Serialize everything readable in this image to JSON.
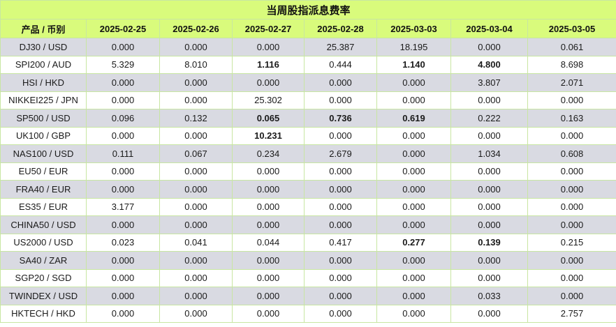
{
  "title": "当周股指派息费率",
  "columns": [
    "产品 / 币别",
    "2025-02-25",
    "2025-02-26",
    "2025-02-27",
    "2025-02-28",
    "2025-03-03",
    "2025-03-04",
    "2025-03-05"
  ],
  "rows": [
    {
      "product": "DJ30 / USD",
      "values": [
        "0.000",
        "0.000",
        "0.000",
        "25.387",
        "18.195",
        "0.000",
        "0.061"
      ],
      "bold": [
        false,
        false,
        false,
        false,
        false,
        false,
        false
      ]
    },
    {
      "product": "SPI200 / AUD",
      "values": [
        "5.329",
        "8.010",
        "1.116",
        "0.444",
        "1.140",
        "4.800",
        "8.698"
      ],
      "bold": [
        false,
        false,
        true,
        false,
        true,
        true,
        false
      ]
    },
    {
      "product": "HSI / HKD",
      "values": [
        "0.000",
        "0.000",
        "0.000",
        "0.000",
        "0.000",
        "3.807",
        "2.071"
      ],
      "bold": [
        false,
        false,
        false,
        false,
        false,
        false,
        false
      ]
    },
    {
      "product": "NIKKEI225 / JPN",
      "values": [
        "0.000",
        "0.000",
        "25.302",
        "0.000",
        "0.000",
        "0.000",
        "0.000"
      ],
      "bold": [
        false,
        false,
        false,
        false,
        false,
        false,
        false
      ]
    },
    {
      "product": "SP500 / USD",
      "values": [
        "0.096",
        "0.132",
        "0.065",
        "0.736",
        "0.619",
        "0.222",
        "0.163"
      ],
      "bold": [
        false,
        false,
        true,
        true,
        true,
        false,
        false
      ]
    },
    {
      "product": "UK100 / GBP",
      "values": [
        "0.000",
        "0.000",
        "10.231",
        "0.000",
        "0.000",
        "0.000",
        "0.000"
      ],
      "bold": [
        false,
        false,
        true,
        false,
        false,
        false,
        false
      ]
    },
    {
      "product": "NAS100 / USD",
      "values": [
        "0.111",
        "0.067",
        "0.234",
        "2.679",
        "0.000",
        "1.034",
        "0.608"
      ],
      "bold": [
        false,
        false,
        false,
        false,
        false,
        false,
        false
      ]
    },
    {
      "product": "EU50 / EUR",
      "values": [
        "0.000",
        "0.000",
        "0.000",
        "0.000",
        "0.000",
        "0.000",
        "0.000"
      ],
      "bold": [
        false,
        false,
        false,
        false,
        false,
        false,
        false
      ]
    },
    {
      "product": "FRA40 / EUR",
      "values": [
        "0.000",
        "0.000",
        "0.000",
        "0.000",
        "0.000",
        "0.000",
        "0.000"
      ],
      "bold": [
        false,
        false,
        false,
        false,
        false,
        false,
        false
      ]
    },
    {
      "product": "ES35 / EUR",
      "values": [
        "3.177",
        "0.000",
        "0.000",
        "0.000",
        "0.000",
        "0.000",
        "0.000"
      ],
      "bold": [
        false,
        false,
        false,
        false,
        false,
        false,
        false
      ]
    },
    {
      "product": "CHINA50 / USD",
      "values": [
        "0.000",
        "0.000",
        "0.000",
        "0.000",
        "0.000",
        "0.000",
        "0.000"
      ],
      "bold": [
        false,
        false,
        false,
        false,
        false,
        false,
        false
      ]
    },
    {
      "product": "US2000 / USD",
      "values": [
        "0.023",
        "0.041",
        "0.044",
        "0.417",
        "0.277",
        "0.139",
        "0.215"
      ],
      "bold": [
        false,
        false,
        false,
        false,
        true,
        true,
        false
      ]
    },
    {
      "product": "SA40 / ZAR",
      "values": [
        "0.000",
        "0.000",
        "0.000",
        "0.000",
        "0.000",
        "0.000",
        "0.000"
      ],
      "bold": [
        false,
        false,
        false,
        false,
        false,
        false,
        false
      ]
    },
    {
      "product": "SGP20 / SGD",
      "values": [
        "0.000",
        "0.000",
        "0.000",
        "0.000",
        "0.000",
        "0.000",
        "0.000"
      ],
      "bold": [
        false,
        false,
        false,
        false,
        false,
        false,
        false
      ]
    },
    {
      "product": "TWINDEX / USD",
      "values": [
        "0.000",
        "0.000",
        "0.000",
        "0.000",
        "0.000",
        "0.033",
        "0.000"
      ],
      "bold": [
        false,
        false,
        false,
        false,
        false,
        false,
        false
      ]
    },
    {
      "product": "HKTECH / HKD",
      "values": [
        "0.000",
        "0.000",
        "0.000",
        "0.000",
        "0.000",
        "0.000",
        "2.757"
      ],
      "bold": [
        false,
        false,
        false,
        false,
        false,
        false,
        false
      ]
    }
  ],
  "colors": {
    "header_bg": "#d9fb7c",
    "stripe_bg": "#d9dae2",
    "border": "#c8e6a2"
  }
}
